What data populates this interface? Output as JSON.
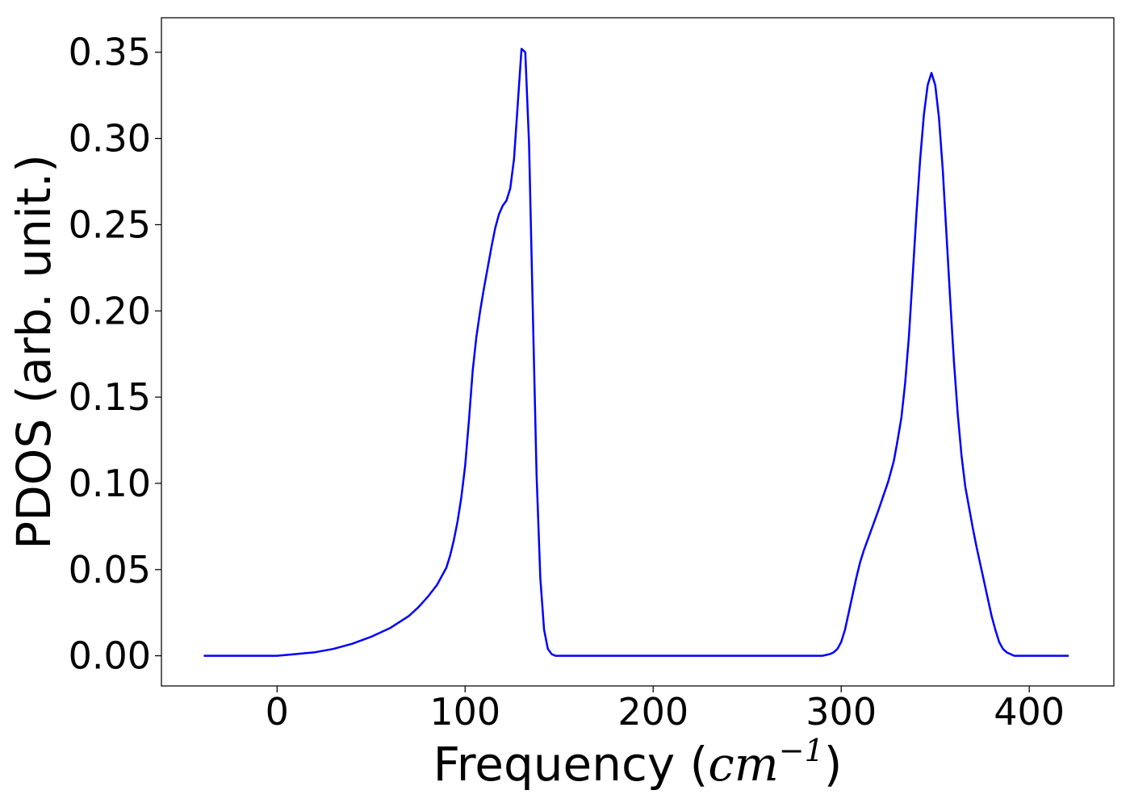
{
  "chart_data": {
    "type": "line",
    "title": "",
    "xlabel": {
      "prefix": "Frequency (",
      "unit_base": "cm",
      "unit_exp": "−1",
      "suffix": ")"
    },
    "ylabel": "PDOS (arb. unit.)",
    "xlim": [
      -61.5,
      445
    ],
    "ylim": [
      -0.0175,
      0.37
    ],
    "x_ticks": [
      0,
      100,
      200,
      300,
      400
    ],
    "x_tick_labels": [
      "0",
      "100",
      "200",
      "300",
      "400"
    ],
    "y_ticks": [
      0.0,
      0.05,
      0.1,
      0.15,
      0.2,
      0.25,
      0.3,
      0.35
    ],
    "y_tick_labels": [
      "0.00",
      "0.05",
      "0.10",
      "0.15",
      "0.20",
      "0.25",
      "0.30",
      "0.35"
    ],
    "grid": false,
    "series": [
      {
        "color": "#0000ff",
        "x": [
          -39,
          0,
          10,
          20,
          30,
          40,
          50,
          60,
          70,
          75,
          80,
          85,
          90,
          92,
          94,
          96,
          98,
          100,
          102,
          104,
          106,
          108,
          110,
          112,
          114,
          116,
          118,
          120,
          122,
          124,
          126,
          128,
          130,
          132,
          134,
          136,
          138,
          140,
          142,
          144,
          146,
          148,
          150,
          152,
          160,
          200,
          250,
          290,
          294,
          296,
          298,
          300,
          302,
          304,
          306,
          308,
          310,
          312,
          315,
          320,
          325,
          328,
          330,
          332,
          334,
          336,
          338,
          340,
          342,
          344,
          346,
          348,
          350,
          352,
          354,
          356,
          358,
          360,
          362,
          364,
          366,
          368,
          370,
          372,
          374,
          376,
          378,
          380,
          382,
          384,
          386,
          388,
          390,
          392,
          395,
          400,
          421
        ],
        "y": [
          0.0,
          0.0,
          0.001,
          0.002,
          0.004,
          0.007,
          0.011,
          0.016,
          0.023,
          0.028,
          0.034,
          0.041,
          0.051,
          0.058,
          0.067,
          0.078,
          0.092,
          0.11,
          0.136,
          0.165,
          0.185,
          0.2,
          0.213,
          0.225,
          0.237,
          0.248,
          0.256,
          0.261,
          0.264,
          0.271,
          0.288,
          0.32,
          0.352,
          0.35,
          0.297,
          0.2,
          0.105,
          0.045,
          0.015,
          0.004,
          0.001,
          0.0,
          0.0,
          0.0,
          0.0,
          0.0,
          0.0,
          0.0,
          0.001,
          0.002,
          0.004,
          0.008,
          0.015,
          0.025,
          0.035,
          0.045,
          0.054,
          0.061,
          0.07,
          0.085,
          0.101,
          0.113,
          0.125,
          0.138,
          0.158,
          0.185,
          0.22,
          0.256,
          0.288,
          0.314,
          0.331,
          0.338,
          0.331,
          0.312,
          0.282,
          0.244,
          0.206,
          0.17,
          0.14,
          0.116,
          0.098,
          0.086,
          0.074,
          0.063,
          0.053,
          0.043,
          0.033,
          0.023,
          0.015,
          0.008,
          0.004,
          0.002,
          0.001,
          0.0,
          0.0,
          0.0,
          0.0
        ]
      }
    ]
  }
}
